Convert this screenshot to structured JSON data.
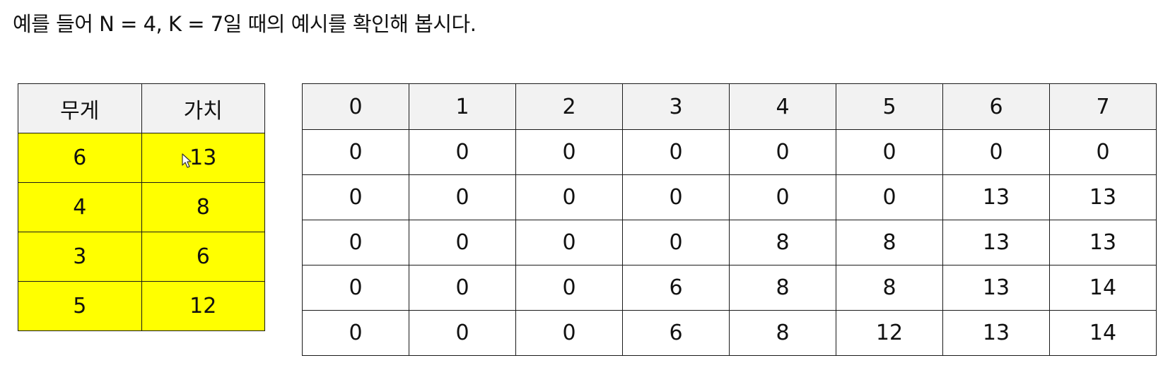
{
  "intro_text": "예를 들어 N = 4, K = 7일 때의 예시를 확인해 봅시다.",
  "items_table": {
    "headers": [
      "무게",
      "가치"
    ],
    "rows": [
      [
        "6",
        "13"
      ],
      [
        "4",
        "8"
      ],
      [
        "3",
        "6"
      ],
      [
        "5",
        "12"
      ]
    ],
    "header_color": "#f2f2f2",
    "row_color": "#ffff00"
  },
  "dp_table": {
    "headers": [
      "0",
      "1",
      "2",
      "3",
      "4",
      "5",
      "6",
      "7"
    ],
    "rows": [
      [
        "0",
        "0",
        "0",
        "0",
        "0",
        "0",
        "0",
        "0"
      ],
      [
        "0",
        "0",
        "0",
        "0",
        "0",
        "0",
        "13",
        "13"
      ],
      [
        "0",
        "0",
        "0",
        "0",
        "8",
        "8",
        "13",
        "13"
      ],
      [
        "0",
        "0",
        "0",
        "6",
        "8",
        "8",
        "13",
        "14"
      ],
      [
        "0",
        "0",
        "0",
        "6",
        "8",
        "12",
        "13",
        "14"
      ]
    ],
    "header_color": "#f2f2f2"
  },
  "cursor_icon": "mouse-pointer-icon"
}
